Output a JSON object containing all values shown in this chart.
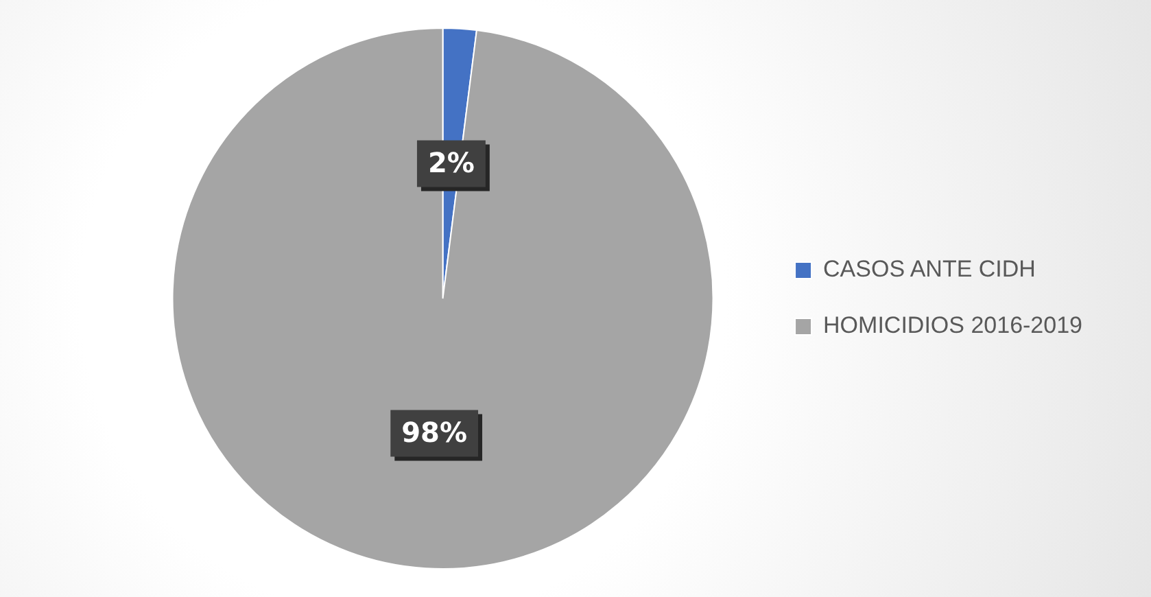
{
  "chart_data": {
    "type": "pie",
    "categories": [
      "CASOS ANTE CIDH",
      "HOMICIDIOS 2016-2019"
    ],
    "values": [
      2,
      98
    ],
    "colors": [
      "#4472c4",
      "#a5a5a5"
    ],
    "value_labels": [
      "2%",
      "98%"
    ],
    "legend": "right"
  }
}
